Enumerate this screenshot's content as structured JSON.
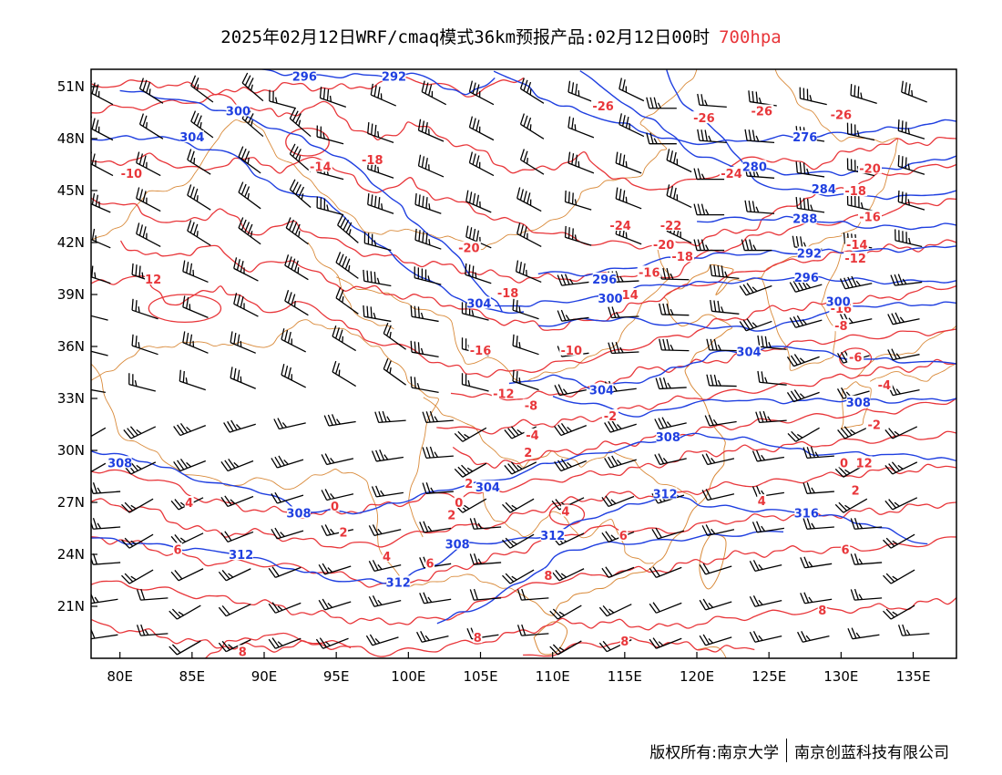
{
  "title": {
    "main": "2025年02月12日WRF/cmaq模式36km预报产品:02月12日00时",
    "level": "700hpa"
  },
  "map": {
    "lon_range": [
      78,
      138
    ],
    "lat_range": [
      18,
      52
    ],
    "lon_ticks": [
      "80E",
      "85E",
      "90E",
      "95E",
      "100E",
      "105E",
      "110E",
      "115E",
      "120E",
      "125E",
      "130E",
      "135E"
    ],
    "lat_ticks": [
      "21N",
      "24N",
      "27N",
      "30N",
      "33N",
      "36N",
      "39N",
      "42N",
      "45N",
      "48N",
      "51N"
    ],
    "colors": {
      "height": "#1f3fe0",
      "temperature": "#e8363a",
      "boundary": "#d98a3a",
      "wind": "#000000"
    },
    "height_labels": [
      {
        "t": "296",
        "lon": 92.8,
        "lat": 51.6
      },
      {
        "t": "292",
        "lon": 99.0,
        "lat": 51.6
      },
      {
        "t": "300",
        "lon": 88.2,
        "lat": 49.6
      },
      {
        "t": "304",
        "lon": 85.0,
        "lat": 48.1
      },
      {
        "t": "276",
        "lon": 127.5,
        "lat": 48.1
      },
      {
        "t": "280",
        "lon": 124.0,
        "lat": 46.4
      },
      {
        "t": "284",
        "lon": 128.8,
        "lat": 45.1
      },
      {
        "t": "288",
        "lon": 127.5,
        "lat": 43.4
      },
      {
        "t": "292",
        "lon": 127.8,
        "lat": 41.4
      },
      {
        "t": "296",
        "lon": 127.6,
        "lat": 40.0
      },
      {
        "t": "296",
        "lon": 113.6,
        "lat": 39.9
      },
      {
        "t": "300",
        "lon": 114.0,
        "lat": 38.8
      },
      {
        "t": "300",
        "lon": 129.8,
        "lat": 38.6
      },
      {
        "t": "304",
        "lon": 104.9,
        "lat": 38.5
      },
      {
        "t": "304",
        "lon": 123.6,
        "lat": 35.7
      },
      {
        "t": "304",
        "lon": 113.4,
        "lat": 33.5
      },
      {
        "t": "308",
        "lon": 131.2,
        "lat": 32.8
      },
      {
        "t": "308",
        "lon": 118.0,
        "lat": 30.8
      },
      {
        "t": "308",
        "lon": 80.0,
        "lat": 29.3
      },
      {
        "t": "304",
        "lon": 105.5,
        "lat": 27.9
      },
      {
        "t": "312",
        "lon": 117.8,
        "lat": 27.5
      },
      {
        "t": "308",
        "lon": 92.4,
        "lat": 26.4
      },
      {
        "t": "316",
        "lon": 127.6,
        "lat": 26.4
      },
      {
        "t": "312",
        "lon": 110.0,
        "lat": 25.1
      },
      {
        "t": "308",
        "lon": 103.4,
        "lat": 24.6
      },
      {
        "t": "312",
        "lon": 88.4,
        "lat": 24.0
      },
      {
        "t": "312",
        "lon": 99.3,
        "lat": 22.4
      }
    ],
    "temperature_labels": [
      {
        "t": "-26",
        "lon": 113.5,
        "lat": 49.9
      },
      {
        "t": "-26",
        "lon": 120.5,
        "lat": 49.2
      },
      {
        "t": "-26",
        "lon": 124.5,
        "lat": 49.6
      },
      {
        "t": "-26",
        "lon": 130.0,
        "lat": 49.4
      },
      {
        "t": "-10",
        "lon": 80.8,
        "lat": 46.0
      },
      {
        "t": "-14",
        "lon": 93.9,
        "lat": 46.4
      },
      {
        "t": "-18",
        "lon": 97.5,
        "lat": 46.8
      },
      {
        "t": "-24",
        "lon": 122.4,
        "lat": 46.0
      },
      {
        "t": "-20",
        "lon": 132.0,
        "lat": 46.3
      },
      {
        "t": "-18",
        "lon": 131.0,
        "lat": 45.0
      },
      {
        "t": "-16",
        "lon": 132.0,
        "lat": 43.5
      },
      {
        "t": "-24",
        "lon": 114.7,
        "lat": 43.0
      },
      {
        "t": "-22",
        "lon": 118.2,
        "lat": 43.0
      },
      {
        "t": "-20",
        "lon": 104.2,
        "lat": 41.7
      },
      {
        "t": "-20",
        "lon": 117.7,
        "lat": 41.9
      },
      {
        "t": "-18",
        "lon": 119.0,
        "lat": 41.2
      },
      {
        "t": "-14",
        "lon": 131.1,
        "lat": 41.9
      },
      {
        "t": "-12",
        "lon": 131.0,
        "lat": 41.1
      },
      {
        "t": "-16",
        "lon": 116.7,
        "lat": 40.3
      },
      {
        "t": "12",
        "lon": 82.3,
        "lat": 39.9
      },
      {
        "t": "-18",
        "lon": 106.9,
        "lat": 39.1
      },
      {
        "t": "-14",
        "lon": 115.2,
        "lat": 39.0
      },
      {
        "t": "-16",
        "lon": 130.0,
        "lat": 38.2
      },
      {
        "t": "-8",
        "lon": 130.0,
        "lat": 37.2
      },
      {
        "t": "-16",
        "lon": 105.0,
        "lat": 35.8
      },
      {
        "t": "-10",
        "lon": 111.3,
        "lat": 35.8
      },
      {
        "t": "-6",
        "lon": 131.0,
        "lat": 35.4
      },
      {
        "t": "-12",
        "lon": 106.6,
        "lat": 33.3
      },
      {
        "t": "-4",
        "lon": 133.0,
        "lat": 33.8
      },
      {
        "t": "-8",
        "lon": 108.5,
        "lat": 32.6
      },
      {
        "t": "-2",
        "lon": 114.0,
        "lat": 32.0
      },
      {
        "t": "-4",
        "lon": 108.6,
        "lat": 30.9
      },
      {
        "t": "-2",
        "lon": 132.3,
        "lat": 31.5
      },
      {
        "t": "2",
        "lon": 108.3,
        "lat": 29.9
      },
      {
        "t": "0",
        "lon": 130.2,
        "lat": 29.3
      },
      {
        "t": "12",
        "lon": 131.6,
        "lat": 29.3
      },
      {
        "t": "2",
        "lon": 104.2,
        "lat": 28.1
      },
      {
        "t": "2",
        "lon": 131.0,
        "lat": 27.7
      },
      {
        "t": "4",
        "lon": 84.8,
        "lat": 27.0
      },
      {
        "t": "0",
        "lon": 94.9,
        "lat": 26.8
      },
      {
        "t": "0",
        "lon": 103.5,
        "lat": 27.0
      },
      {
        "t": "2",
        "lon": 103.0,
        "lat": 26.3
      },
      {
        "t": "4",
        "lon": 110.9,
        "lat": 26.5
      },
      {
        "t": "4",
        "lon": 124.5,
        "lat": 27.1
      },
      {
        "t": "2",
        "lon": 95.5,
        "lat": 25.3
      },
      {
        "t": "6",
        "lon": 84.0,
        "lat": 24.3
      },
      {
        "t": "4",
        "lon": 98.5,
        "lat": 23.9
      },
      {
        "t": "6",
        "lon": 101.5,
        "lat": 23.5
      },
      {
        "t": "6",
        "lon": 114.9,
        "lat": 25.1
      },
      {
        "t": "6",
        "lon": 130.3,
        "lat": 24.3
      },
      {
        "t": "8",
        "lon": 109.7,
        "lat": 22.8
      },
      {
        "t": "8",
        "lon": 128.7,
        "lat": 20.8
      },
      {
        "t": "8",
        "lon": 104.8,
        "lat": 19.2
      },
      {
        "t": "8",
        "lon": 88.5,
        "lat": 18.4
      },
      {
        "t": "8",
        "lon": 115.0,
        "lat": 19.0
      }
    ]
  },
  "footer": {
    "copyright": "版权所有:南京大学",
    "company": "南京创蓝科技有限公司"
  }
}
